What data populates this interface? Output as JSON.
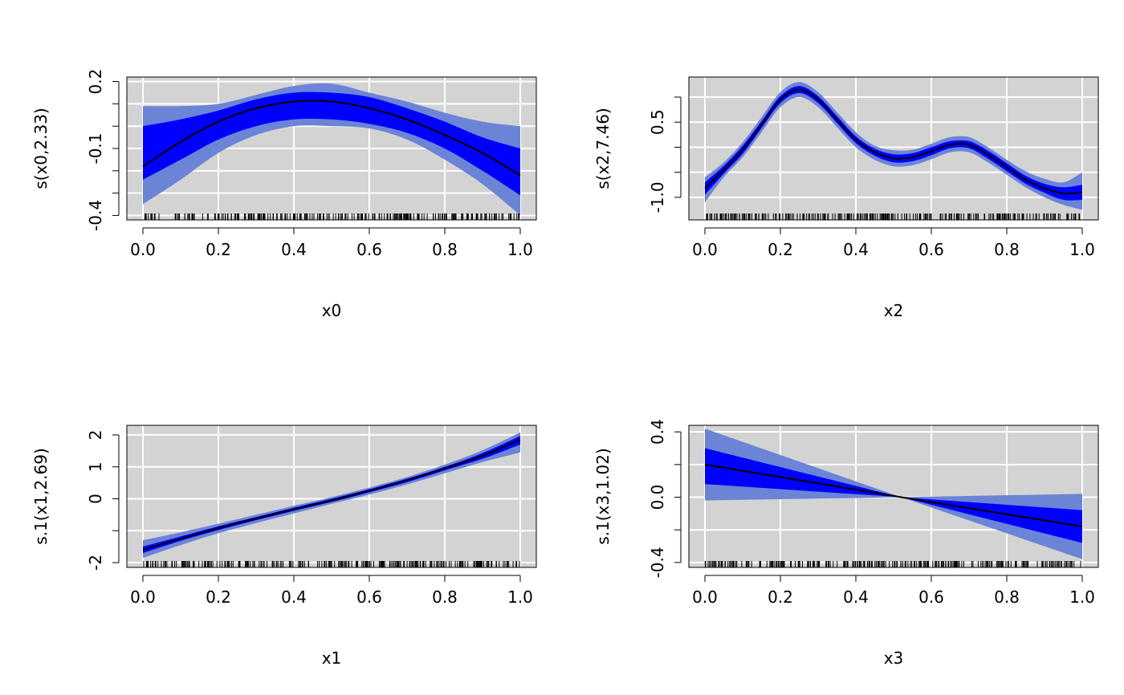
{
  "colors": {
    "panel_bg": "#d3d3d3",
    "grid": "#ffffff",
    "outer_band": "#6b84d6",
    "inner_band": "#0000ff",
    "line": "#000000",
    "rug": "#000000"
  },
  "chart_data": [
    {
      "type": "line",
      "xlabel": "x0",
      "ylabel": "s(x0,2.33)",
      "xlim": [
        0,
        1
      ],
      "ylim": [
        -0.42,
        0.22
      ],
      "xticks": [
        0,
        0.2,
        0.4,
        0.6,
        0.8,
        1.0
      ],
      "xtick_labels": [
        "0.0",
        "0.2",
        "0.4",
        "0.6",
        "0.8",
        "1.0"
      ],
      "yticks": [
        -0.4,
        -0.3,
        -0.2,
        -0.1,
        0.0,
        0.1,
        0.2
      ],
      "ytick_labels": [
        "-0.4",
        "",
        "",
        "-0.1",
        "",
        "",
        "0.2"
      ],
      "grid": true,
      "x": [
        0,
        0.1,
        0.2,
        0.3,
        0.4,
        0.5,
        0.6,
        0.7,
        0.8,
        0.9,
        1.0
      ],
      "fit": [
        -0.18,
        -0.07,
        0.02,
        0.08,
        0.11,
        0.11,
        0.08,
        0.03,
        -0.04,
        -0.12,
        -0.22
      ],
      "inner_upper": [
        0.0,
        0.03,
        0.07,
        0.12,
        0.15,
        0.15,
        0.13,
        0.08,
        0.02,
        -0.05,
        -0.1
      ],
      "inner_lower": [
        -0.24,
        -0.15,
        -0.06,
        0.0,
        0.03,
        0.03,
        0.01,
        -0.03,
        -0.1,
        -0.2,
        -0.31
      ],
      "outer_upper": [
        0.09,
        0.09,
        0.1,
        0.14,
        0.18,
        0.19,
        0.15,
        0.11,
        0.06,
        0.02,
        0.0
      ],
      "outer_lower": [
        -0.35,
        -0.24,
        -0.12,
        -0.04,
        0.0,
        0.0,
        -0.01,
        -0.06,
        -0.15,
        -0.26,
        -0.4
      ]
    },
    {
      "type": "line",
      "xlabel": "x2",
      "ylabel": "s(x2,7.46)",
      "xlim": [
        0,
        1
      ],
      "ylim": [
        -1.45,
        1.4
      ],
      "xticks": [
        0,
        0.2,
        0.4,
        0.6,
        0.8,
        1.0
      ],
      "xtick_labels": [
        "0.0",
        "0.2",
        "0.4",
        "0.6",
        "0.8",
        "1.0"
      ],
      "yticks": [
        -1.0,
        -0.5,
        0.0,
        0.5,
        1.0
      ],
      "ytick_labels": [
        "-1.0",
        "",
        "",
        "0.5",
        ""
      ],
      "grid": true,
      "x": [
        0,
        0.05,
        0.1,
        0.15,
        0.2,
        0.25,
        0.3,
        0.35,
        0.4,
        0.45,
        0.5,
        0.55,
        0.6,
        0.65,
        0.7,
        0.75,
        0.8,
        0.85,
        0.9,
        0.95,
        1.0
      ],
      "fit": [
        -0.82,
        -0.45,
        -0.05,
        0.45,
        0.95,
        1.15,
        0.95,
        0.55,
        0.15,
        -0.1,
        -0.22,
        -0.2,
        -0.08,
        0.05,
        0.05,
        -0.15,
        -0.4,
        -0.65,
        -0.82,
        -0.92,
        -0.9
      ],
      "inner_upper": [
        -0.7,
        -0.37,
        0.03,
        0.52,
        1.02,
        1.22,
        1.02,
        0.62,
        0.22,
        -0.03,
        -0.14,
        -0.12,
        0.0,
        0.12,
        0.12,
        -0.07,
        -0.32,
        -0.57,
        -0.73,
        -0.8,
        -0.75
      ],
      "inner_lower": [
        -0.95,
        -0.53,
        -0.13,
        0.38,
        0.88,
        1.08,
        0.88,
        0.48,
        0.08,
        -0.17,
        -0.3,
        -0.28,
        -0.16,
        -0.02,
        -0.02,
        -0.23,
        -0.48,
        -0.73,
        -0.91,
        -1.05,
        -1.05
      ],
      "outer_upper": [
        -0.6,
        -0.3,
        0.1,
        0.6,
        1.1,
        1.3,
        1.1,
        0.7,
        0.3,
        0.03,
        -0.06,
        -0.05,
        0.07,
        0.2,
        0.2,
        0.0,
        -0.25,
        -0.48,
        -0.63,
        -0.7,
        -0.5
      ],
      "outer_lower": [
        -1.1,
        -0.6,
        -0.2,
        0.3,
        0.8,
        1.0,
        0.8,
        0.4,
        0.0,
        -0.25,
        -0.38,
        -0.36,
        -0.24,
        -0.1,
        -0.1,
        -0.3,
        -0.55,
        -0.8,
        -1.0,
        -1.15,
        -1.25
      ]
    },
    {
      "type": "line",
      "xlabel": "x1",
      "ylabel": "s.1(x1,2.69)",
      "xlim": [
        0,
        1
      ],
      "ylim": [
        -2.15,
        2.3
      ],
      "xticks": [
        0,
        0.2,
        0.4,
        0.6,
        0.8,
        1.0
      ],
      "xtick_labels": [
        "0.0",
        "0.2",
        "0.4",
        "0.6",
        "0.8",
        "1.0"
      ],
      "yticks": [
        -2,
        -1,
        0,
        1,
        2
      ],
      "ytick_labels": [
        "-2",
        "",
        "0",
        "1",
        "2"
      ],
      "grid": true,
      "x": [
        0,
        0.1,
        0.2,
        0.3,
        0.4,
        0.5,
        0.6,
        0.7,
        0.8,
        0.9,
        1.0
      ],
      "fit": [
        -1.6,
        -1.25,
        -0.92,
        -0.62,
        -0.33,
        -0.05,
        0.25,
        0.58,
        0.95,
        1.35,
        1.85
      ],
      "inner_upper": [
        -1.5,
        -1.18,
        -0.86,
        -0.57,
        -0.28,
        0.0,
        0.3,
        0.63,
        1.0,
        1.43,
        1.97
      ],
      "inner_lower": [
        -1.7,
        -1.32,
        -0.98,
        -0.67,
        -0.38,
        -0.1,
        0.2,
        0.52,
        0.89,
        1.25,
        1.7
      ],
      "outer_upper": [
        -1.3,
        -1.05,
        -0.78,
        -0.5,
        -0.22,
        0.05,
        0.35,
        0.68,
        1.07,
        1.52,
        2.08
      ],
      "outer_lower": [
        -1.85,
        -1.45,
        -1.08,
        -0.76,
        -0.46,
        -0.16,
        0.13,
        0.45,
        0.8,
        1.15,
        1.45
      ]
    },
    {
      "type": "line",
      "xlabel": "x3",
      "ylabel": "s.1(x3,1.02)",
      "xlim": [
        0,
        1
      ],
      "ylim": [
        -0.43,
        0.44
      ],
      "xticks": [
        0,
        0.2,
        0.4,
        0.6,
        0.8,
        1.0
      ],
      "xtick_labels": [
        "0.0",
        "0.2",
        "0.4",
        "0.6",
        "0.8",
        "1.0"
      ],
      "yticks": [
        -0.4,
        -0.2,
        0.0,
        0.2,
        0.4
      ],
      "ytick_labels": [
        "-0.4",
        "",
        "0.0",
        "",
        "0.4"
      ],
      "grid": true,
      "x": [
        0,
        0.52,
        1.0
      ],
      "fit": [
        0.2,
        0.0,
        -0.18
      ],
      "inner_upper": [
        0.3,
        0.0,
        -0.08
      ],
      "inner_lower": [
        0.08,
        0.0,
        -0.28
      ],
      "outer_upper": [
        0.42,
        0.0,
        0.02
      ],
      "outer_lower": [
        -0.02,
        0.0,
        -0.38
      ]
    }
  ]
}
